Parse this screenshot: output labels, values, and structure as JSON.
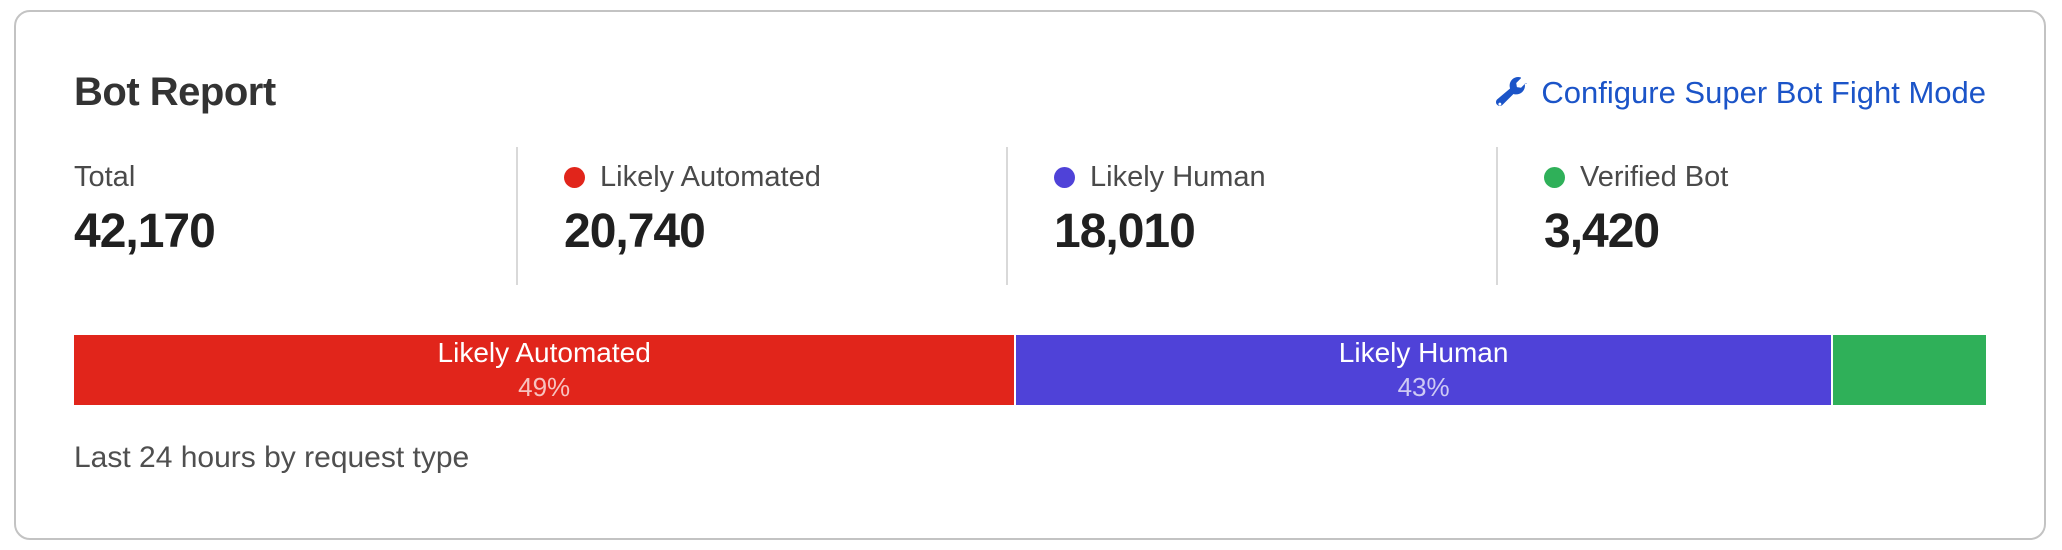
{
  "card": {
    "title": "Bot Report",
    "configure_link": {
      "label": "Configure Super Bot Fight Mode",
      "icon": "wrench-icon",
      "color": "#1b54c8"
    },
    "caption": "Last 24 hours by request type"
  },
  "stats": [
    {
      "label": "Total",
      "value": "42,170",
      "dot_color": null
    },
    {
      "label": "Likely Automated",
      "value": "20,740",
      "dot_color": "#e1251b"
    },
    {
      "label": "Likely Human",
      "value": "18,010",
      "dot_color": "#4f42d8"
    },
    {
      "label": "Verified Bot",
      "value": "3,420",
      "dot_color": "#2fb059"
    }
  ],
  "chart_data": {
    "type": "bar",
    "variant": "stacked-horizontal-single-bar",
    "title": "Bot Report",
    "caption": "Last 24 hours by request type",
    "total": 42170,
    "segments": [
      {
        "name": "Likely Automated",
        "value": 20740,
        "percent": 49.18,
        "percent_label": "49%",
        "color": "#e1251b"
      },
      {
        "name": "Likely Human",
        "value": 18010,
        "percent": 42.71,
        "percent_label": "43%",
        "color": "#4f42d8"
      },
      {
        "name": "Verified Bot",
        "value": 3420,
        "percent": 8.11,
        "percent_label": "",
        "color": "#2fb059"
      }
    ],
    "legend_position": "top-stats-row",
    "grid": false
  }
}
